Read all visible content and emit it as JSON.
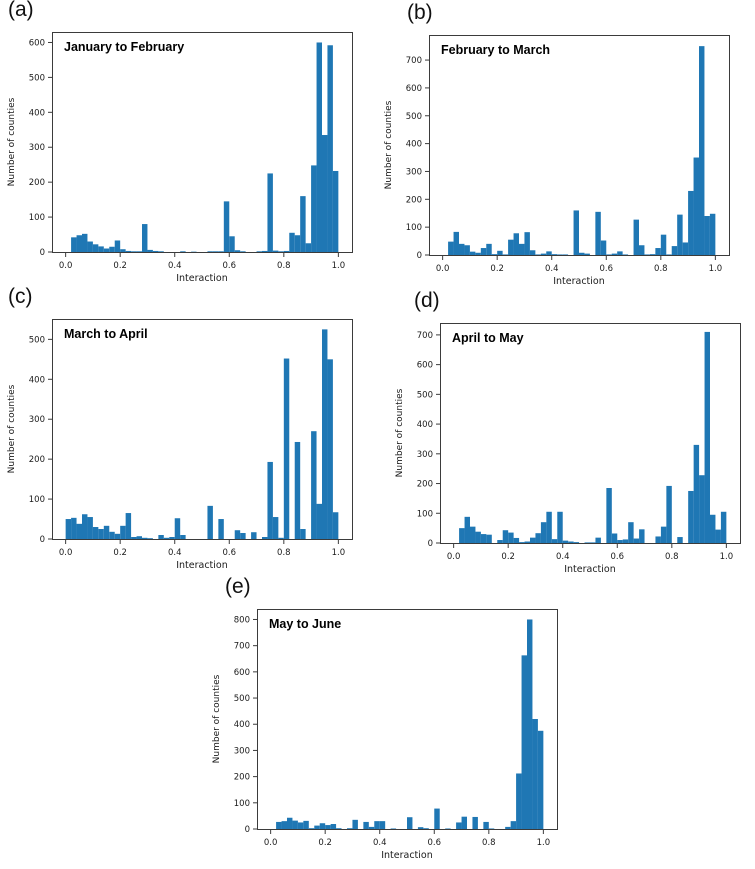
{
  "figure": {
    "background": "#ffffff",
    "bar_color": "#1f77b4",
    "axis_color": "#3b3b3b",
    "text_color": "#1a1a1a",
    "xlabel": "Interaction",
    "ylabel": "Number of counties",
    "xlim": [
      -0.05,
      1.05
    ],
    "bin_width": 0.02,
    "xticks": {
      "values": [
        0,
        0.2,
        0.4,
        0.6,
        0.8,
        1.0
      ],
      "labels": [
        "0.0",
        "0.2",
        "0.4",
        "0.6",
        "0.8",
        "1.0"
      ]
    }
  },
  "chart_data": [
    {
      "type": "bar",
      "panel": "a",
      "letter": "(a)",
      "title": "January to February",
      "xlabel": "Interaction",
      "ylabel": "Number of counties",
      "ylim": [
        0,
        630
      ],
      "yticks": [
        0,
        100,
        200,
        300,
        400,
        500,
        600
      ],
      "grid": false,
      "bins_start_count": [
        [
          0.02,
          42
        ],
        [
          0.04,
          48
        ],
        [
          0.06,
          52
        ],
        [
          0.08,
          30
        ],
        [
          0.1,
          22
        ],
        [
          0.12,
          16
        ],
        [
          0.14,
          10
        ],
        [
          0.16,
          15
        ],
        [
          0.18,
          33
        ],
        [
          0.2,
          8
        ],
        [
          0.22,
          3
        ],
        [
          0.24,
          2
        ],
        [
          0.26,
          2
        ],
        [
          0.28,
          80
        ],
        [
          0.3,
          6
        ],
        [
          0.32,
          3
        ],
        [
          0.34,
          2
        ],
        [
          0.42,
          2
        ],
        [
          0.46,
          1
        ],
        [
          0.52,
          2
        ],
        [
          0.54,
          2
        ],
        [
          0.56,
          2
        ],
        [
          0.58,
          145
        ],
        [
          0.6,
          45
        ],
        [
          0.62,
          5
        ],
        [
          0.64,
          2
        ],
        [
          0.7,
          2
        ],
        [
          0.72,
          3
        ],
        [
          0.74,
          225
        ],
        [
          0.76,
          4
        ],
        [
          0.78,
          2
        ],
        [
          0.8,
          3
        ],
        [
          0.82,
          55
        ],
        [
          0.84,
          48
        ],
        [
          0.86,
          160
        ],
        [
          0.88,
          25
        ],
        [
          0.9,
          248
        ],
        [
          0.92,
          600
        ],
        [
          0.94,
          335
        ],
        [
          0.96,
          592
        ],
        [
          0.98,
          232
        ]
      ]
    },
    {
      "type": "bar",
      "panel": "b",
      "letter": "(b)",
      "title": "February to March",
      "xlabel": "Interaction",
      "ylabel": "Number of counties",
      "ylim": [
        0,
        790
      ],
      "yticks": [
        0,
        100,
        200,
        300,
        400,
        500,
        600,
        700
      ],
      "grid": false,
      "bins_start_count": [
        [
          0.02,
          48
        ],
        [
          0.04,
          83
        ],
        [
          0.06,
          40
        ],
        [
          0.08,
          35
        ],
        [
          0.1,
          12
        ],
        [
          0.12,
          8
        ],
        [
          0.14,
          25
        ],
        [
          0.16,
          40
        ],
        [
          0.18,
          3
        ],
        [
          0.2,
          15
        ],
        [
          0.22,
          2
        ],
        [
          0.24,
          55
        ],
        [
          0.26,
          78
        ],
        [
          0.28,
          40
        ],
        [
          0.3,
          82
        ],
        [
          0.32,
          17
        ],
        [
          0.34,
          2
        ],
        [
          0.36,
          5
        ],
        [
          0.38,
          13
        ],
        [
          0.4,
          3
        ],
        [
          0.42,
          2
        ],
        [
          0.44,
          2
        ],
        [
          0.48,
          160
        ],
        [
          0.5,
          8
        ],
        [
          0.52,
          5
        ],
        [
          0.56,
          155
        ],
        [
          0.58,
          52
        ],
        [
          0.6,
          2
        ],
        [
          0.62,
          5
        ],
        [
          0.64,
          13
        ],
        [
          0.66,
          2
        ],
        [
          0.7,
          127
        ],
        [
          0.72,
          35
        ],
        [
          0.74,
          2
        ],
        [
          0.76,
          3
        ],
        [
          0.78,
          25
        ],
        [
          0.8,
          73
        ],
        [
          0.82,
          2
        ],
        [
          0.84,
          32
        ],
        [
          0.86,
          145
        ],
        [
          0.88,
          45
        ],
        [
          0.9,
          230
        ],
        [
          0.92,
          350
        ],
        [
          0.94,
          750
        ],
        [
          0.96,
          140
        ],
        [
          0.98,
          148
        ]
      ]
    },
    {
      "type": "bar",
      "panel": "c",
      "letter": "(c)",
      "title": "March to April",
      "xlabel": "Interaction",
      "ylabel": "Number of counties",
      "ylim": [
        0,
        551
      ],
      "yticks": [
        0,
        100,
        200,
        300,
        400,
        500
      ],
      "grid": false,
      "bins_start_count": [
        [
          0.0,
          50
        ],
        [
          0.02,
          53
        ],
        [
          0.04,
          38
        ],
        [
          0.06,
          62
        ],
        [
          0.08,
          55
        ],
        [
          0.1,
          30
        ],
        [
          0.12,
          25
        ],
        [
          0.14,
          33
        ],
        [
          0.16,
          18
        ],
        [
          0.18,
          13
        ],
        [
          0.2,
          33
        ],
        [
          0.22,
          65
        ],
        [
          0.24,
          5
        ],
        [
          0.26,
          7
        ],
        [
          0.28,
          3
        ],
        [
          0.3,
          2
        ],
        [
          0.34,
          10
        ],
        [
          0.36,
          3
        ],
        [
          0.38,
          5
        ],
        [
          0.4,
          52
        ],
        [
          0.42,
          10
        ],
        [
          0.52,
          83
        ],
        [
          0.56,
          50
        ],
        [
          0.62,
          22
        ],
        [
          0.64,
          15
        ],
        [
          0.68,
          17
        ],
        [
          0.72,
          5
        ],
        [
          0.74,
          193
        ],
        [
          0.76,
          55
        ],
        [
          0.78,
          3
        ],
        [
          0.8,
          452
        ],
        [
          0.84,
          243
        ],
        [
          0.86,
          25
        ],
        [
          0.9,
          270
        ],
        [
          0.92,
          88
        ],
        [
          0.94,
          525
        ],
        [
          0.96,
          450
        ],
        [
          0.98,
          67
        ]
      ]
    },
    {
      "type": "bar",
      "panel": "d",
      "letter": "(d)",
      "title": "April to May",
      "xlabel": "Interaction",
      "ylabel": "Number of counties",
      "ylim": [
        0,
        740
      ],
      "yticks": [
        0,
        100,
        200,
        300,
        400,
        500,
        600,
        700
      ],
      "grid": false,
      "bins_start_count": [
        [
          0.02,
          50
        ],
        [
          0.04,
          88
        ],
        [
          0.06,
          55
        ],
        [
          0.08,
          38
        ],
        [
          0.1,
          30
        ],
        [
          0.12,
          28
        ],
        [
          0.16,
          10
        ],
        [
          0.18,
          43
        ],
        [
          0.2,
          35
        ],
        [
          0.22,
          17
        ],
        [
          0.24,
          3
        ],
        [
          0.26,
          5
        ],
        [
          0.28,
          18
        ],
        [
          0.3,
          33
        ],
        [
          0.32,
          70
        ],
        [
          0.34,
          105
        ],
        [
          0.36,
          13
        ],
        [
          0.38,
          105
        ],
        [
          0.4,
          8
        ],
        [
          0.42,
          5
        ],
        [
          0.44,
          3
        ],
        [
          0.48,
          2
        ],
        [
          0.5,
          2
        ],
        [
          0.52,
          18
        ],
        [
          0.56,
          185
        ],
        [
          0.58,
          32
        ],
        [
          0.6,
          10
        ],
        [
          0.62,
          12
        ],
        [
          0.64,
          70
        ],
        [
          0.66,
          15
        ],
        [
          0.68,
          46
        ],
        [
          0.74,
          22
        ],
        [
          0.76,
          55
        ],
        [
          0.78,
          192
        ],
        [
          0.82,
          20
        ],
        [
          0.86,
          175
        ],
        [
          0.88,
          330
        ],
        [
          0.9,
          228
        ],
        [
          0.92,
          710
        ],
        [
          0.94,
          95
        ],
        [
          0.96,
          45
        ],
        [
          0.98,
          105
        ]
      ]
    },
    {
      "type": "bar",
      "panel": "e",
      "letter": "(e)",
      "title": "May to June",
      "xlabel": "Interaction",
      "ylabel": "Number of counties",
      "ylim": [
        0,
        840
      ],
      "yticks": [
        0,
        100,
        200,
        300,
        400,
        500,
        600,
        700,
        800
      ],
      "grid": false,
      "bins_start_count": [
        [
          0.02,
          27
        ],
        [
          0.04,
          30
        ],
        [
          0.06,
          43
        ],
        [
          0.08,
          32
        ],
        [
          0.1,
          25
        ],
        [
          0.12,
          31
        ],
        [
          0.14,
          3
        ],
        [
          0.16,
          13
        ],
        [
          0.18,
          22
        ],
        [
          0.2,
          15
        ],
        [
          0.22,
          19
        ],
        [
          0.24,
          3
        ],
        [
          0.28,
          3
        ],
        [
          0.3,
          35
        ],
        [
          0.34,
          27
        ],
        [
          0.36,
          8
        ],
        [
          0.38,
          30
        ],
        [
          0.4,
          30
        ],
        [
          0.44,
          2
        ],
        [
          0.5,
          45
        ],
        [
          0.54,
          7
        ],
        [
          0.56,
          3
        ],
        [
          0.6,
          78
        ],
        [
          0.64,
          2
        ],
        [
          0.68,
          25
        ],
        [
          0.7,
          47
        ],
        [
          0.74,
          46
        ],
        [
          0.78,
          27
        ],
        [
          0.8,
          2
        ],
        [
          0.86,
          8
        ],
        [
          0.88,
          30
        ],
        [
          0.9,
          212
        ],
        [
          0.92,
          663
        ],
        [
          0.94,
          800
        ],
        [
          0.96,
          420
        ],
        [
          0.98,
          375
        ]
      ]
    }
  ]
}
